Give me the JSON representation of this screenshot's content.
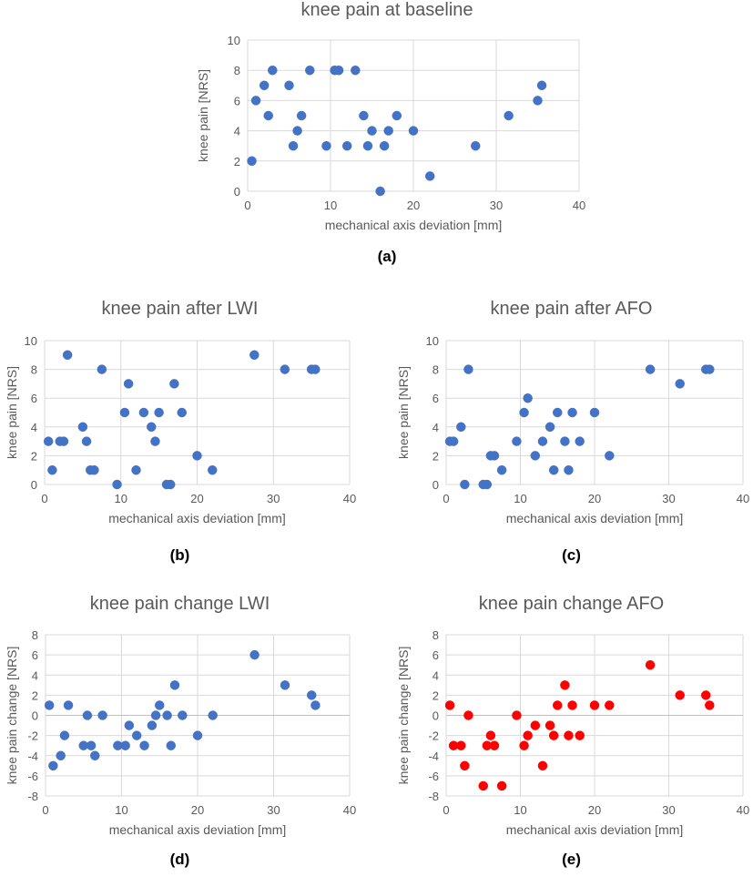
{
  "charts": [
    {
      "id": "a",
      "label": "(a)",
      "chart_data": {
        "type": "scatter",
        "title": "knee pain at baseline",
        "xlabel": "mechanical axis deviation [mm]",
        "ylabel": "knee pain [NRS]",
        "xlim": [
          0,
          40
        ],
        "ylim": [
          0,
          10
        ],
        "xticks": [
          0,
          10,
          20,
          30,
          40
        ],
        "yticks": [
          0,
          2,
          4,
          6,
          8,
          10
        ],
        "grid": true,
        "color": "#4472C4",
        "points": [
          [
            0.5,
            2
          ],
          [
            1,
            6
          ],
          [
            2,
            7
          ],
          [
            2.5,
            5
          ],
          [
            3,
            8
          ],
          [
            5,
            7
          ],
          [
            5.5,
            3
          ],
          [
            6,
            4
          ],
          [
            6.5,
            5
          ],
          [
            7.5,
            8
          ],
          [
            9.5,
            3
          ],
          [
            10.5,
            8
          ],
          [
            11,
            8
          ],
          [
            12,
            3
          ],
          [
            13,
            8
          ],
          [
            14,
            5
          ],
          [
            14.5,
            3
          ],
          [
            15,
            4
          ],
          [
            16,
            0
          ],
          [
            16.5,
            3
          ],
          [
            17,
            4
          ],
          [
            18,
            5
          ],
          [
            20,
            4
          ],
          [
            22,
            1
          ],
          [
            27.5,
            3
          ],
          [
            31.5,
            5
          ],
          [
            35,
            6
          ],
          [
            35.5,
            7
          ]
        ]
      }
    },
    {
      "id": "b",
      "label": "(b)",
      "chart_data": {
        "type": "scatter",
        "title": "knee pain after LWI",
        "xlabel": "mechanical axis deviation [mm]",
        "ylabel": "knee pain [NRS]",
        "xlim": [
          0,
          40
        ],
        "ylim": [
          0,
          10
        ],
        "xticks": [
          0,
          10,
          20,
          30,
          40
        ],
        "yticks": [
          0,
          2,
          4,
          6,
          8,
          10
        ],
        "grid": true,
        "color": "#4472C4",
        "points": [
          [
            0.5,
            3
          ],
          [
            1,
            1
          ],
          [
            2,
            3
          ],
          [
            2.5,
            3
          ],
          [
            3,
            9
          ],
          [
            5,
            4
          ],
          [
            5.5,
            3
          ],
          [
            6,
            1
          ],
          [
            6.5,
            1
          ],
          [
            7.5,
            8
          ],
          [
            9.5,
            0
          ],
          [
            10.5,
            5
          ],
          [
            11,
            7
          ],
          [
            12,
            1
          ],
          [
            13,
            5
          ],
          [
            14,
            4
          ],
          [
            14.5,
            3
          ],
          [
            15,
            5
          ],
          [
            16,
            0
          ],
          [
            16.5,
            0
          ],
          [
            17,
            7
          ],
          [
            18,
            5
          ],
          [
            20,
            2
          ],
          [
            22,
            1
          ],
          [
            27.5,
            9
          ],
          [
            31.5,
            8
          ],
          [
            35,
            8
          ],
          [
            35.5,
            8
          ]
        ]
      }
    },
    {
      "id": "c",
      "label": "(c)",
      "chart_data": {
        "type": "scatter",
        "title": "knee pain after AFO",
        "xlabel": "mechanical axis deviation [mm]",
        "ylabel": "knee pain [NRS]",
        "xlim": [
          0,
          40
        ],
        "ylim": [
          0,
          10
        ],
        "xticks": [
          0,
          10,
          20,
          30,
          40
        ],
        "yticks": [
          0,
          2,
          4,
          6,
          8,
          10
        ],
        "grid": true,
        "color": "#4472C4",
        "points": [
          [
            0.5,
            3
          ],
          [
            1,
            3
          ],
          [
            2,
            4
          ],
          [
            2.5,
            0
          ],
          [
            3,
            8
          ],
          [
            5,
            0
          ],
          [
            5.5,
            0
          ],
          [
            6,
            2
          ],
          [
            6.5,
            2
          ],
          [
            7.5,
            1
          ],
          [
            9.5,
            3
          ],
          [
            10.5,
            5
          ],
          [
            11,
            6
          ],
          [
            12,
            2
          ],
          [
            13,
            3
          ],
          [
            14,
            4
          ],
          [
            14.5,
            1
          ],
          [
            15,
            5
          ],
          [
            16,
            3
          ],
          [
            16.5,
            1
          ],
          [
            17,
            5
          ],
          [
            18,
            3
          ],
          [
            20,
            5
          ],
          [
            22,
            2
          ],
          [
            27.5,
            8
          ],
          [
            31.5,
            7
          ],
          [
            35,
            8
          ],
          [
            35.5,
            8
          ]
        ]
      }
    },
    {
      "id": "d",
      "label": "(d)",
      "chart_data": {
        "type": "scatter",
        "title": "knee pain change LWI",
        "xlabel": "mechanical axis deviation [mm]",
        "ylabel": "knee pain change [NRS]",
        "xlim": [
          0,
          40
        ],
        "ylim": [
          -8,
          8
        ],
        "xticks": [
          0,
          10,
          20,
          30,
          40
        ],
        "yticks": [
          -8,
          -6,
          -4,
          -2,
          0,
          2,
          4,
          6,
          8
        ],
        "grid": true,
        "color": "#4472C4",
        "points": [
          [
            0.5,
            1
          ],
          [
            1,
            -5
          ],
          [
            2,
            -4
          ],
          [
            2.5,
            -2
          ],
          [
            3,
            1
          ],
          [
            5,
            -3
          ],
          [
            5.5,
            0
          ],
          [
            6,
            -3
          ],
          [
            6.5,
            -4
          ],
          [
            7.5,
            0
          ],
          [
            9.5,
            -3
          ],
          [
            10.5,
            -3
          ],
          [
            11,
            -1
          ],
          [
            12,
            -2
          ],
          [
            13,
            -3
          ],
          [
            14,
            -1
          ],
          [
            14.5,
            0
          ],
          [
            15,
            1
          ],
          [
            16,
            0
          ],
          [
            16.5,
            -3
          ],
          [
            17,
            3
          ],
          [
            18,
            0
          ],
          [
            20,
            -2
          ],
          [
            22,
            0
          ],
          [
            27.5,
            6
          ],
          [
            31.5,
            3
          ],
          [
            35,
            2
          ],
          [
            35.5,
            1
          ]
        ]
      }
    },
    {
      "id": "e",
      "label": "(e)",
      "chart_data": {
        "type": "scatter",
        "title": "knee pain change AFO",
        "xlabel": "mechanical axis deviation [mm]",
        "ylabel": "knee pain change [NRS]",
        "xlim": [
          0,
          40
        ],
        "ylim": [
          -8,
          8
        ],
        "xticks": [
          0,
          10,
          20,
          30,
          40
        ],
        "yticks": [
          -8,
          -6,
          -4,
          -2,
          0,
          2,
          4,
          6,
          8
        ],
        "grid": true,
        "color": "#FF0000",
        "points": [
          [
            0.5,
            1
          ],
          [
            1,
            -3
          ],
          [
            2,
            -3
          ],
          [
            2.5,
            -5
          ],
          [
            3,
            0
          ],
          [
            5,
            -7
          ],
          [
            5.5,
            -3
          ],
          [
            6,
            -2
          ],
          [
            6.5,
            -3
          ],
          [
            7.5,
            -7
          ],
          [
            9.5,
            0
          ],
          [
            10.5,
            -3
          ],
          [
            11,
            -2
          ],
          [
            12,
            -1
          ],
          [
            13,
            -5
          ],
          [
            14,
            -1
          ],
          [
            14.5,
            -2
          ],
          [
            15,
            1
          ],
          [
            16,
            3
          ],
          [
            16.5,
            -2
          ],
          [
            17,
            1
          ],
          [
            18,
            -2
          ],
          [
            20,
            1
          ],
          [
            22,
            1
          ],
          [
            27.5,
            5
          ],
          [
            31.5,
            2
          ],
          [
            35,
            2
          ],
          [
            35.5,
            1
          ]
        ]
      }
    }
  ]
}
